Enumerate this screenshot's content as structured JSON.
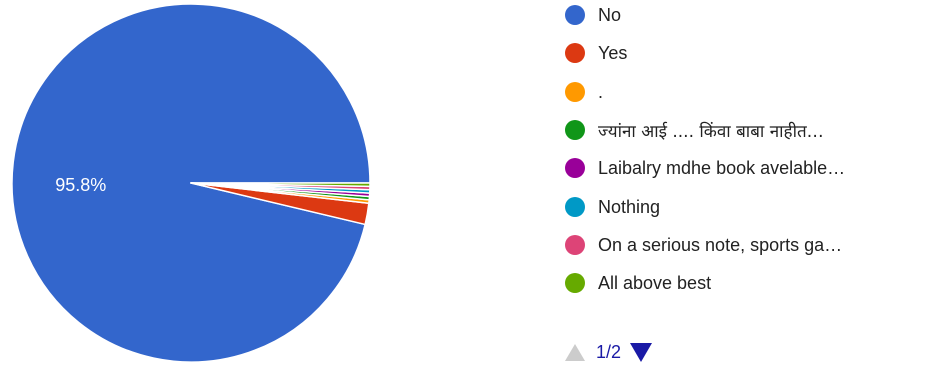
{
  "chart_data": {
    "type": "pie",
    "slices": [
      {
        "label": "No",
        "value": 95.8,
        "color": "#3366cc",
        "display_label": "95.8%"
      },
      {
        "label": "Yes",
        "value": 1.9,
        "color": "#dc3912",
        "display_label": ""
      },
      {
        "label": ".",
        "value": 0.3,
        "color": "#ff9900",
        "display_label": ""
      },
      {
        "label": "ज्यांना आई .... किंवा बाबा नाहीत…",
        "value": 0.3,
        "color": "#109618",
        "display_label": ""
      },
      {
        "label": "Laibalry mdhe book avelable…",
        "value": 0.3,
        "color": "#990099",
        "display_label": ""
      },
      {
        "label": "Nothing",
        "value": 0.3,
        "color": "#0099c6",
        "display_label": ""
      },
      {
        "label": "On a serious note, sports ga…",
        "value": 0.3,
        "color": "#dd4477",
        "display_label": ""
      },
      {
        "label": "All above best",
        "value": 0.3,
        "color": "#66aa00",
        "display_label": ""
      }
    ],
    "legend_position": "right",
    "legend_page": "1/2"
  }
}
